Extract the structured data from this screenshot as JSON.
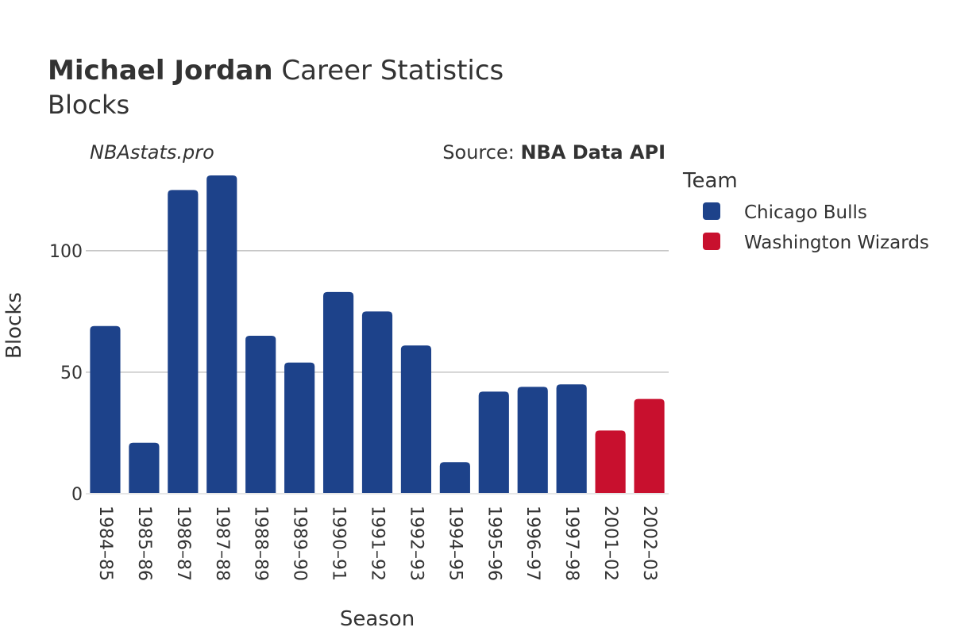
{
  "header": {
    "title_bold": "Michael Jordan",
    "title_rest": " Career Statistics",
    "subtitle": "Blocks",
    "brand": "NBAstats.pro",
    "source_prefix": "Source: ",
    "source_name": "NBA Data API"
  },
  "legend": {
    "title": "Team",
    "items": [
      {
        "label": "Chicago Bulls",
        "color": "#1d428a"
      },
      {
        "label": "Washington Wizards",
        "color": "#c8102e"
      }
    ]
  },
  "chart_data": {
    "type": "bar",
    "title": "Michael Jordan Career Statistics",
    "subtitle": "Blocks",
    "xlabel": "Season",
    "ylabel": "Blocks",
    "ylim": [
      0,
      131
    ],
    "yticks": [
      0,
      50,
      100
    ],
    "grid": true,
    "legend_position": "right",
    "categories": [
      "1984–85",
      "1985–86",
      "1986–87",
      "1987–88",
      "1988–89",
      "1989–90",
      "1990–91",
      "1991–92",
      "1992–93",
      "1994–95",
      "1995–96",
      "1996–97",
      "1997–98",
      "2001–02",
      "2002–03"
    ],
    "values": [
      69,
      21,
      125,
      131,
      65,
      54,
      83,
      75,
      61,
      13,
      42,
      44,
      45,
      26,
      39
    ],
    "teams": [
      "Chicago Bulls",
      "Chicago Bulls",
      "Chicago Bulls",
      "Chicago Bulls",
      "Chicago Bulls",
      "Chicago Bulls",
      "Chicago Bulls",
      "Chicago Bulls",
      "Chicago Bulls",
      "Chicago Bulls",
      "Chicago Bulls",
      "Chicago Bulls",
      "Chicago Bulls",
      "Washington Wizards",
      "Washington Wizards"
    ]
  }
}
